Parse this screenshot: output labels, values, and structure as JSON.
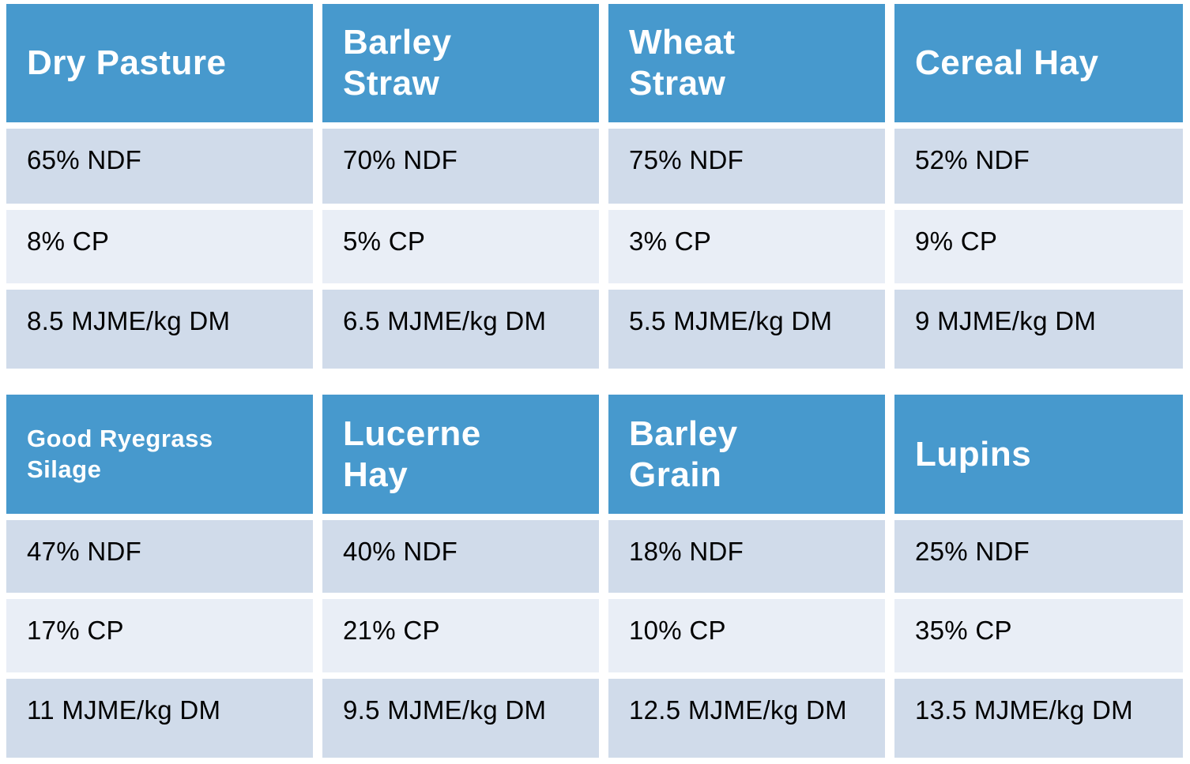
{
  "colors": {
    "header_bg": "#4799CD",
    "header_text": "#FFFFFF",
    "band_dark": "#D0DBEA",
    "band_light": "#E9EEF6",
    "body_text": "#000000",
    "page_bg": "#FFFFFF"
  },
  "tables": [
    {
      "headers": [
        "Dry Pasture",
        "Barley\nStraw",
        "Wheat\nStraw",
        "Cereal Hay"
      ],
      "rows": [
        [
          "65% NDF",
          "70% NDF",
          "75% NDF",
          "52% NDF"
        ],
        [
          "8% CP",
          "5% CP",
          "3% CP",
          "9% CP"
        ],
        [
          "8.5 MJME/kg DM",
          "6.5 MJME/kg DM",
          "5.5 MJME/kg DM",
          "9 MJME/kg DM"
        ]
      ]
    },
    {
      "headers": [
        "Good Ryegrass\nSilage",
        "Lucerne\nHay",
        "Barley\nGrain",
        "Lupins"
      ],
      "rows": [
        [
          "47% NDF",
          "40% NDF",
          "18% NDF",
          "25% NDF"
        ],
        [
          "17% CP",
          "21% CP",
          "10% CP",
          "35% CP"
        ],
        [
          "11 MJME/kg DM",
          "9.5 MJME/kg DM",
          "12.5 MJME/kg DM",
          "13.5 MJME/kg DM"
        ]
      ]
    }
  ]
}
